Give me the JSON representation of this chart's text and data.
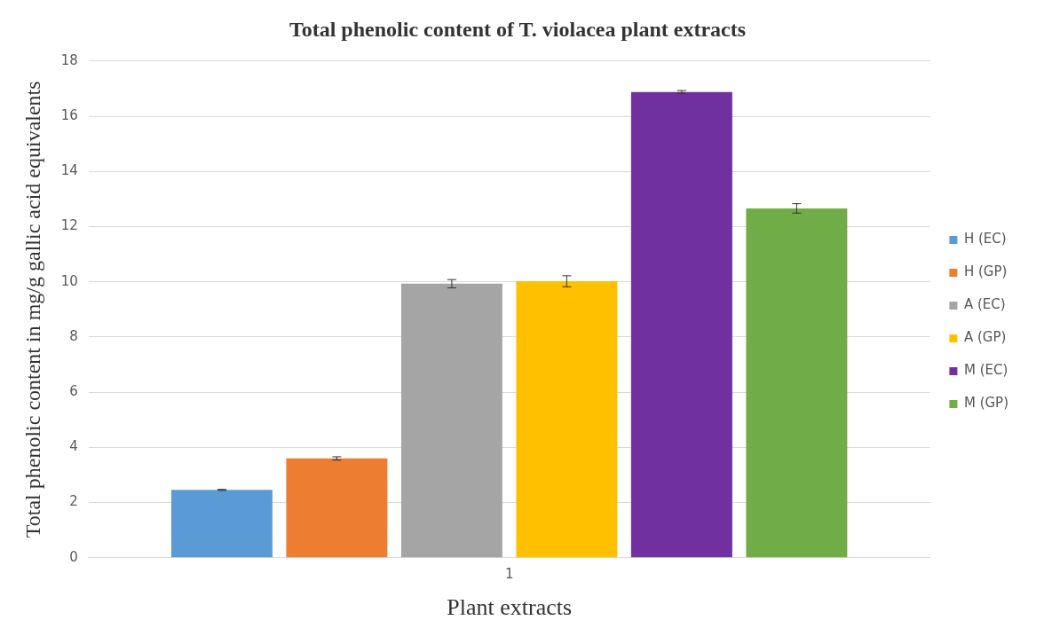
{
  "chart_data": {
    "type": "bar",
    "title": "Total phenolic content of T. violacea plant extracts",
    "xlabel": "Plant extracts",
    "ylabel": "Total phenolic content in mg/g gallic acid equivalents",
    "categories": [
      "1"
    ],
    "series": [
      {
        "name": "H (EC)",
        "color": "#5b9bd5",
        "values": [
          2.46
        ],
        "errors": [
          0.02
        ]
      },
      {
        "name": "H (GP)",
        "color": "#ed7d31",
        "values": [
          3.6
        ],
        "errors": [
          0.06
        ]
      },
      {
        "name": "A (EC)",
        "color": "#a5a5a5",
        "values": [
          9.93
        ],
        "errors": [
          0.15
        ]
      },
      {
        "name": "A (GP)",
        "color": "#ffc000",
        "values": [
          10.02
        ],
        "errors": [
          0.2
        ]
      },
      {
        "name": "M (EC)",
        "color": "#7030a0",
        "values": [
          16.88
        ],
        "errors": [
          0.05
        ]
      },
      {
        "name": "M (GP)",
        "color": "#70ad47",
        "values": [
          12.66
        ],
        "errors": [
          0.17
        ]
      }
    ],
    "ylim": [
      0,
      18
    ],
    "yticks": [
      0,
      2,
      4,
      6,
      8,
      10,
      12,
      14,
      16,
      18
    ],
    "grid": "y",
    "legend": "right"
  }
}
